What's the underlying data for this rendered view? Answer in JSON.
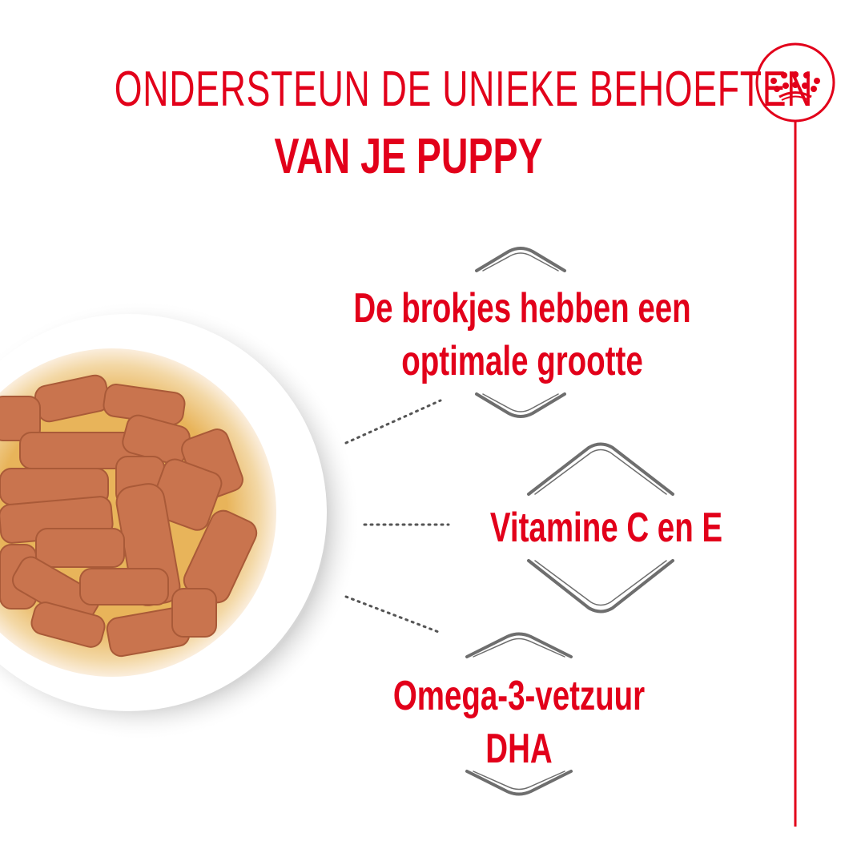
{
  "header": {
    "title_line1": "ONDERSTEUN DE UNIEKE BEHOEFTEN",
    "title_line2": "VAN JE PUPPY"
  },
  "logo": {
    "icon": "crown-icon",
    "color": "#e2001a"
  },
  "features": [
    {
      "line1": "De brokjes hebben een",
      "line2": "optimale grootte"
    },
    {
      "line1": "Vitamine C en E"
    },
    {
      "line1": "Omega-3-vetzuur",
      "line2": "DHA"
    }
  ],
  "colors": {
    "brand_red": "#e2001a",
    "bracket_gray": "#6e6e6e"
  }
}
